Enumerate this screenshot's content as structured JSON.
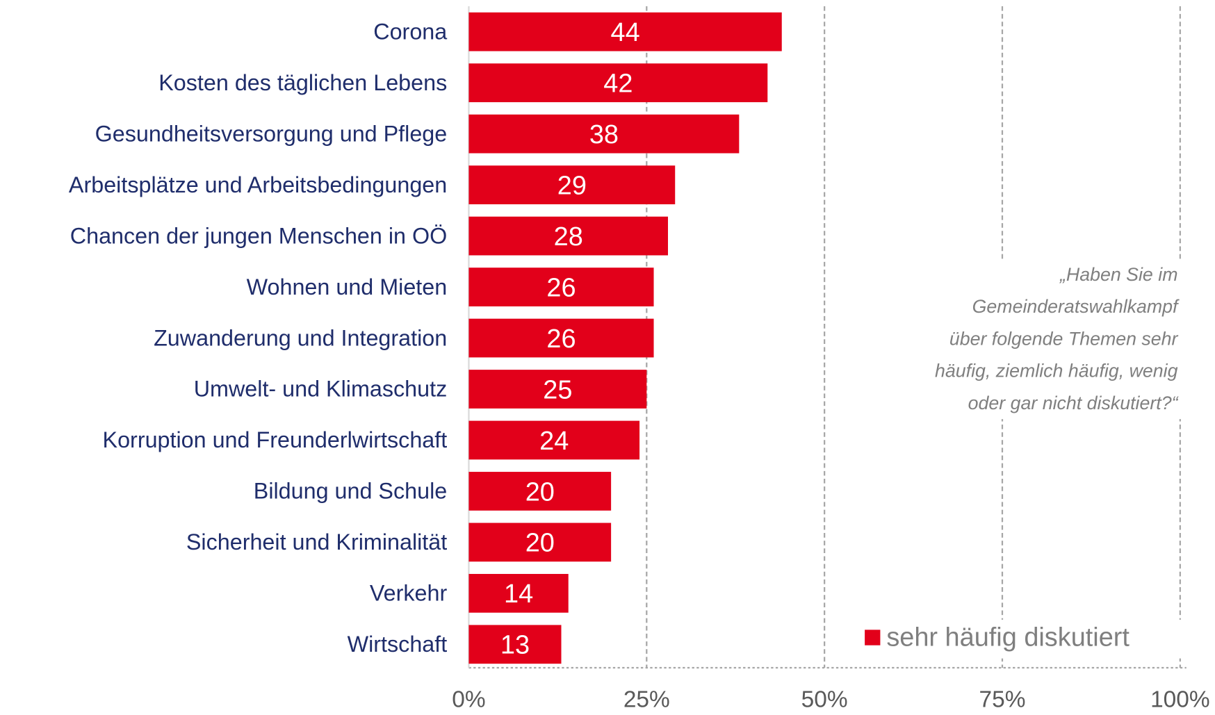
{
  "chart_data": {
    "type": "bar",
    "orientation": "horizontal",
    "categories": [
      "Corona",
      "Kosten des täglichen Lebens",
      "Gesundheitsversorgung und Pflege",
      "Arbeitsplätze und Arbeitsbedingungen",
      "Chancen der jungen Menschen in OÖ",
      "Wohnen und Mieten",
      "Zuwanderung und Integration",
      "Umwelt- und Klimaschutz",
      "Korruption und Freunderlwirtschaft",
      "Bildung und Schule",
      "Sicherheit und Kriminalität",
      "Verkehr",
      "Wirtschaft"
    ],
    "series": [
      {
        "name": "sehr häufig diskutiert",
        "color": "#e2001a",
        "values": [
          44,
          42,
          38,
          29,
          28,
          26,
          26,
          25,
          24,
          20,
          20,
          14,
          13
        ]
      }
    ],
    "xlim": [
      0,
      100
    ],
    "xticks": [
      {
        "value": 0,
        "label": "0%"
      },
      {
        "value": 25,
        "label": "25%"
      },
      {
        "value": 50,
        "label": "50%"
      },
      {
        "value": 75,
        "label": "75%"
      },
      {
        "value": 100,
        "label": "100%"
      }
    ],
    "grid": true,
    "legend": "lower right",
    "annotation": [
      "„Haben Sie im",
      "Gemeinderatswahlkampf",
      "über folgende Themen sehr",
      "häufig, ziemlich häufig, wenig",
      "oder gar nicht diskutiert?“"
    ]
  }
}
